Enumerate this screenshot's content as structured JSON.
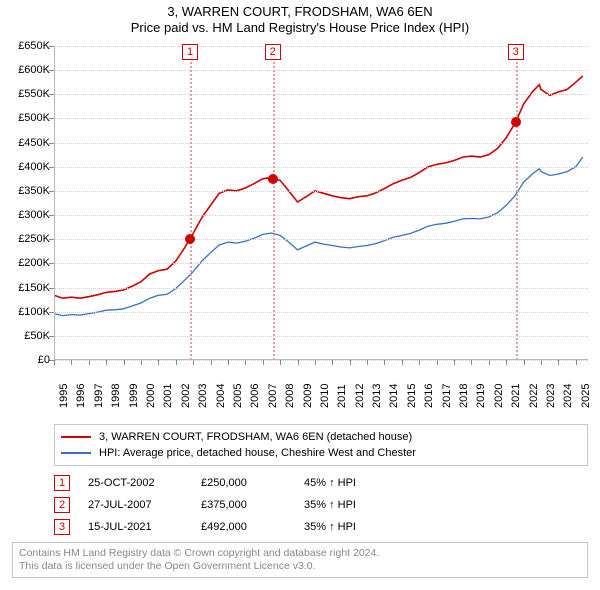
{
  "title_line1": "3, WARREN COURT, FRODSHAM, WA6 6EN",
  "title_line2": "Price paid vs. HM Land Registry's House Price Index (HPI)",
  "title_fontsize": 13,
  "text_color": "#000000",
  "background_color": "#ffffff",
  "chart": {
    "type": "line",
    "x_min_year": 1995,
    "x_max_year": 2025.7,
    "y_min": 0,
    "y_max": 650000,
    "y_tick_step": 50000,
    "y_tick_format_prefix": "£",
    "y_tick_format_suffix": "K",
    "x_ticks": [
      1995,
      1996,
      1997,
      1998,
      1999,
      2000,
      2001,
      2002,
      2003,
      2004,
      2005,
      2006,
      2007,
      2008,
      2009,
      2010,
      2011,
      2012,
      2013,
      2014,
      2015,
      2016,
      2017,
      2018,
      2019,
      2020,
      2021,
      2022,
      2023,
      2024,
      2025
    ],
    "grid_color": "#cfcfcf",
    "axis_color": "#b8b8b8",
    "tick_fontsize": 11,
    "series": [
      {
        "key": "red",
        "label": "3, WARREN COURT, FRODSHAM, WA6 6EN (detached house)",
        "color": "#d00000",
        "width": 1.6,
        "points": [
          [
            1995.0,
            134000
          ],
          [
            1995.5,
            128000
          ],
          [
            1996.0,
            130000
          ],
          [
            1996.5,
            128000
          ],
          [
            1997.0,
            131000
          ],
          [
            1997.5,
            135000
          ],
          [
            1998.0,
            140000
          ],
          [
            1998.5,
            142000
          ],
          [
            1999.0,
            145000
          ],
          [
            1999.5,
            153000
          ],
          [
            2000.0,
            162000
          ],
          [
            2000.5,
            178000
          ],
          [
            2001.0,
            185000
          ],
          [
            2001.5,
            188000
          ],
          [
            2002.0,
            205000
          ],
          [
            2002.5,
            232000
          ],
          [
            2002.82,
            250000
          ],
          [
            2003.0,
            262000
          ],
          [
            2003.5,
            295000
          ],
          [
            2004.0,
            320000
          ],
          [
            2004.5,
            345000
          ],
          [
            2005.0,
            352000
          ],
          [
            2005.5,
            350000
          ],
          [
            2006.0,
            356000
          ],
          [
            2006.5,
            365000
          ],
          [
            2007.0,
            375000
          ],
          [
            2007.5,
            378000
          ],
          [
            2007.57,
            375000
          ],
          [
            2008.0,
            372000
          ],
          [
            2008.5,
            350000
          ],
          [
            2009.0,
            327000
          ],
          [
            2009.5,
            338000
          ],
          [
            2010.0,
            350000
          ],
          [
            2010.5,
            345000
          ],
          [
            2011.0,
            340000
          ],
          [
            2011.5,
            336000
          ],
          [
            2012.0,
            334000
          ],
          [
            2012.5,
            338000
          ],
          [
            2013.0,
            340000
          ],
          [
            2013.5,
            346000
          ],
          [
            2014.0,
            355000
          ],
          [
            2014.5,
            365000
          ],
          [
            2015.0,
            372000
          ],
          [
            2015.5,
            378000
          ],
          [
            2016.0,
            388000
          ],
          [
            2016.5,
            400000
          ],
          [
            2017.0,
            405000
          ],
          [
            2017.5,
            408000
          ],
          [
            2018.0,
            413000
          ],
          [
            2018.5,
            420000
          ],
          [
            2019.0,
            422000
          ],
          [
            2019.5,
            420000
          ],
          [
            2020.0,
            425000
          ],
          [
            2020.5,
            438000
          ],
          [
            2021.0,
            460000
          ],
          [
            2021.54,
            492000
          ],
          [
            2022.0,
            530000
          ],
          [
            2022.5,
            555000
          ],
          [
            2022.9,
            570000
          ],
          [
            2023.0,
            560000
          ],
          [
            2023.5,
            548000
          ],
          [
            2024.0,
            555000
          ],
          [
            2024.5,
            560000
          ],
          [
            2025.0,
            575000
          ],
          [
            2025.4,
            588000
          ]
        ]
      },
      {
        "key": "blue",
        "label": "HPI: Average price, detached house, Cheshire West and Chester",
        "color": "#3b6fc4",
        "width": 1.3,
        "points": [
          [
            1995.0,
            96000
          ],
          [
            1995.5,
            92000
          ],
          [
            1996.0,
            94000
          ],
          [
            1996.5,
            93000
          ],
          [
            1997.0,
            96000
          ],
          [
            1997.5,
            99000
          ],
          [
            1998.0,
            103000
          ],
          [
            1998.5,
            104000
          ],
          [
            1999.0,
            106000
          ],
          [
            1999.5,
            112000
          ],
          [
            2000.0,
            118000
          ],
          [
            2000.5,
            128000
          ],
          [
            2001.0,
            134000
          ],
          [
            2001.5,
            136000
          ],
          [
            2002.0,
            148000
          ],
          [
            2002.5,
            165000
          ],
          [
            2003.0,
            183000
          ],
          [
            2003.5,
            205000
          ],
          [
            2004.0,
            222000
          ],
          [
            2004.5,
            238000
          ],
          [
            2005.0,
            244000
          ],
          [
            2005.5,
            242000
          ],
          [
            2006.0,
            246000
          ],
          [
            2006.5,
            252000
          ],
          [
            2007.0,
            260000
          ],
          [
            2007.5,
            263000
          ],
          [
            2008.0,
            258000
          ],
          [
            2008.5,
            244000
          ],
          [
            2009.0,
            228000
          ],
          [
            2009.5,
            236000
          ],
          [
            2010.0,
            244000
          ],
          [
            2010.5,
            240000
          ],
          [
            2011.0,
            237000
          ],
          [
            2011.5,
            234000
          ],
          [
            2012.0,
            232000
          ],
          [
            2012.5,
            235000
          ],
          [
            2013.0,
            237000
          ],
          [
            2013.5,
            241000
          ],
          [
            2014.0,
            247000
          ],
          [
            2014.5,
            254000
          ],
          [
            2015.0,
            258000
          ],
          [
            2015.5,
            262000
          ],
          [
            2016.0,
            269000
          ],
          [
            2016.5,
            277000
          ],
          [
            2017.0,
            281000
          ],
          [
            2017.5,
            283000
          ],
          [
            2018.0,
            287000
          ],
          [
            2018.5,
            292000
          ],
          [
            2019.0,
            293000
          ],
          [
            2019.5,
            292000
          ],
          [
            2020.0,
            296000
          ],
          [
            2020.5,
            305000
          ],
          [
            2021.0,
            320000
          ],
          [
            2021.5,
            340000
          ],
          [
            2022.0,
            368000
          ],
          [
            2022.5,
            385000
          ],
          [
            2022.9,
            396000
          ],
          [
            2023.0,
            390000
          ],
          [
            2023.5,
            382000
          ],
          [
            2024.0,
            385000
          ],
          [
            2024.5,
            390000
          ],
          [
            2025.0,
            400000
          ],
          [
            2025.4,
            420000
          ]
        ]
      }
    ],
    "markers": [
      {
        "n": "1",
        "year": 2002.82,
        "value": 250000
      },
      {
        "n": "2",
        "year": 2007.57,
        "value": 375000
      },
      {
        "n": "3",
        "year": 2021.54,
        "value": 492000
      }
    ],
    "marker_line_color": "#e0a0a0",
    "marker_badge_border": "#d00000",
    "marker_point_color": "#d00000"
  },
  "legend": {
    "border_color": "#c8c8c8",
    "fontsize": 11
  },
  "events": [
    {
      "n": "1",
      "date": "25-OCT-2002",
      "price": "£250,000",
      "delta": "45% ↑ HPI"
    },
    {
      "n": "2",
      "date": "27-JUL-2007",
      "price": "£375,000",
      "delta": "35% ↑ HPI"
    },
    {
      "n": "3",
      "date": "15-JUL-2021",
      "price": "£492,000",
      "delta": "35% ↑ HPI"
    }
  ],
  "footer": {
    "line1": "Contains HM Land Registry data © Crown copyright and database right 2024.",
    "line2": "This data is licensed under the Open Government Licence v3.0.",
    "color": "#888888",
    "border_color": "#c8c8c8"
  }
}
